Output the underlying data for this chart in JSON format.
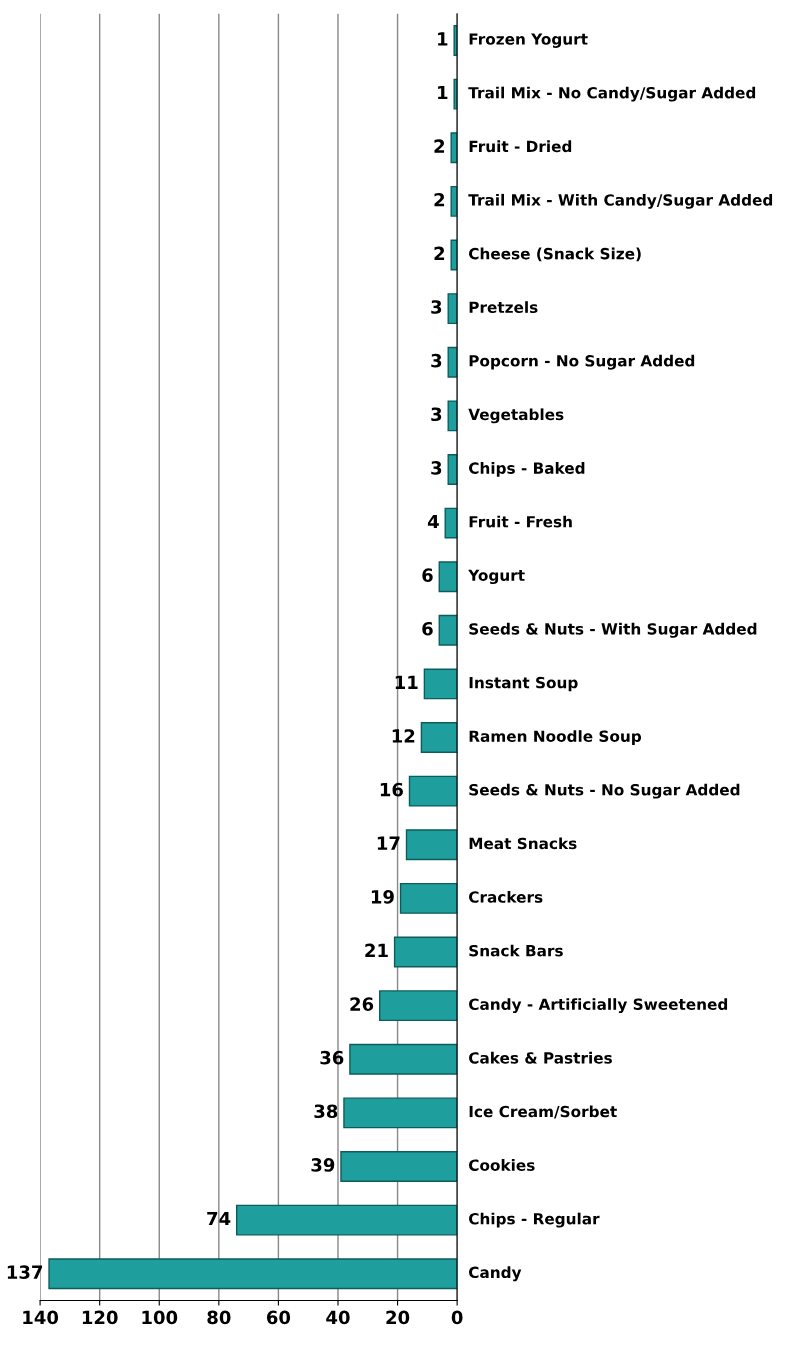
{
  "chart_data": {
    "type": "bar",
    "orientation": "horizontal",
    "categories": [
      "Frozen Yogurt",
      "Trail Mix - No Candy/Sugar Added",
      "Fruit - Dried",
      "Trail Mix - With Candy/Sugar Added",
      "Cheese (Snack Size)",
      "Pretzels",
      "Popcorn - No Sugar Added",
      "Vegetables",
      "Chips - Baked",
      "Fruit - Fresh",
      "Yogurt",
      "Seeds & Nuts - With Sugar Added",
      "Instant Soup",
      "Ramen Noodle Soup",
      "Seeds & Nuts - No Sugar Added",
      "Meat Snacks",
      "Crackers",
      "Snack Bars",
      "Candy - Artificially Sweetened",
      "Cakes & Pastries",
      "Ice Cream/Sorbet",
      "Cookies",
      "Chips - Regular",
      "Candy"
    ],
    "values": [
      1,
      1,
      2,
      2,
      2,
      3,
      3,
      3,
      3,
      4,
      6,
      6,
      11,
      12,
      16,
      17,
      19,
      21,
      26,
      36,
      38,
      39,
      74,
      137
    ],
    "color": "#1f9e9e",
    "xlim": [
      140,
      0
    ],
    "xticks": [
      0,
      20,
      40,
      60,
      80,
      100,
      120,
      140
    ],
    "grid": "x",
    "data_labels": true
  }
}
